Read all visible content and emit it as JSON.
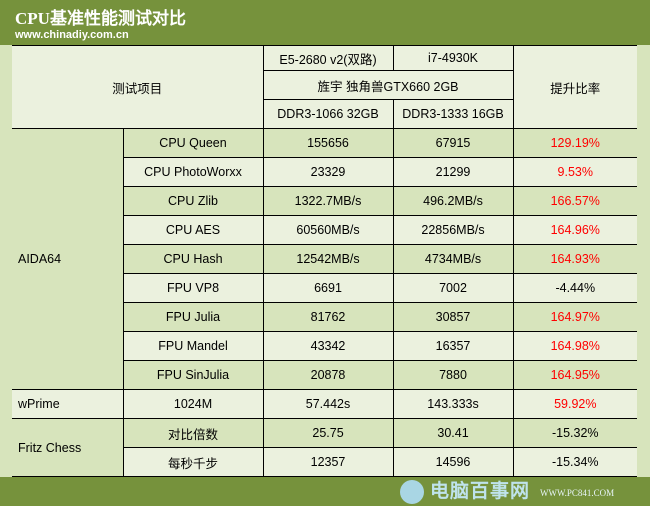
{
  "header": {
    "title": "CPU基准性能测试对比",
    "site": "www.chinadiy.com.cn"
  },
  "table": {
    "item_header": "测试项目",
    "cpu_a": "E5-2680 v2(双路)",
    "cpu_b": "i7-4930K",
    "gpu": "旌宇 独角兽GTX660 2GB",
    "mem_a": "DDR3-1066 32GB",
    "mem_b": "DDR3-1333 16GB",
    "ratio_header": "提升比率",
    "groups": [
      {
        "name": "AIDA64",
        "rows": [
          {
            "test": "CPU Queen",
            "a": "155656",
            "b": "67915",
            "ratio": "129.19%",
            "positive": true
          },
          {
            "test": "CPU PhotoWorxx",
            "a": "23329",
            "b": "21299",
            "ratio": "9.53%",
            "positive": true
          },
          {
            "test": "CPU Zlib",
            "a": "1322.7MB/s",
            "b": "496.2MB/s",
            "ratio": "166.57%",
            "positive": true
          },
          {
            "test": "CPU AES",
            "a": "60560MB/s",
            "b": "22856MB/s",
            "ratio": "164.96%",
            "positive": true
          },
          {
            "test": "CPU Hash",
            "a": "12542MB/s",
            "b": "4734MB/s",
            "ratio": "164.93%",
            "positive": true
          },
          {
            "test": "FPU VP8",
            "a": "6691",
            "b": "7002",
            "ratio": "-4.44%",
            "positive": false
          },
          {
            "test": "FPU Julia",
            "a": "81762",
            "b": "30857",
            "ratio": "164.97%",
            "positive": true
          },
          {
            "test": "FPU Mandel",
            "a": "43342",
            "b": "16357",
            "ratio": "164.98%",
            "positive": true
          },
          {
            "test": "FPU SinJulia",
            "a": "20878",
            "b": "7880",
            "ratio": "164.95%",
            "positive": true
          }
        ]
      },
      {
        "name": "wPrime",
        "rows": [
          {
            "test": "1024M",
            "a": "57.442s",
            "b": "143.333s",
            "ratio": "59.92%",
            "positive": true
          }
        ]
      },
      {
        "name": "Fritz Chess",
        "rows": [
          {
            "test": "对比倍数",
            "a": "25.75",
            "b": "30.41",
            "ratio": "-15.32%",
            "positive": false
          },
          {
            "test": "每秒千步",
            "a": "12357",
            "b": "14596",
            "ratio": "-15.34%",
            "positive": false
          }
        ]
      }
    ]
  },
  "watermark": {
    "name": "电脑百事网",
    "url": "WWW.PC841.COM"
  },
  "colors": {
    "header_green": "#76923c",
    "row_dark": "#d7e4bc",
    "row_light": "#ebf1de",
    "positive": "#ff0000"
  }
}
